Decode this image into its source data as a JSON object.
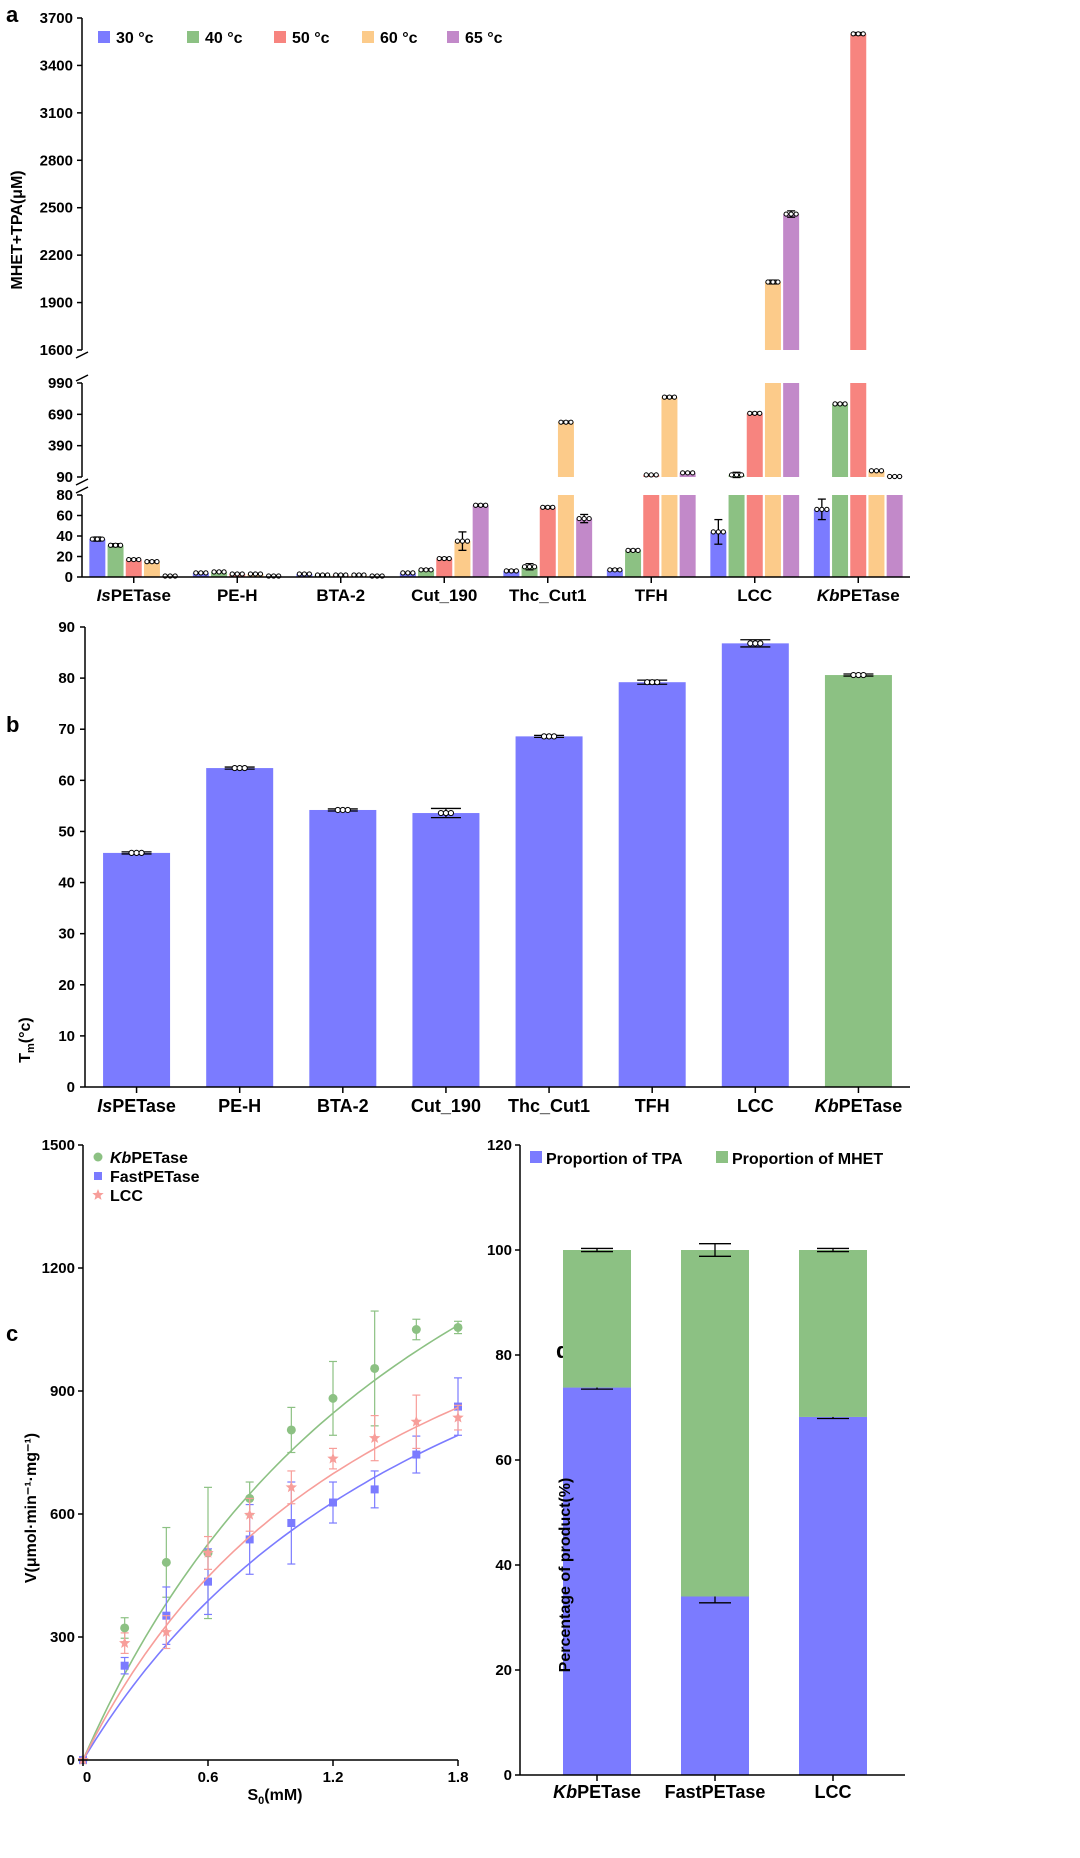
{
  "colors": {
    "c30": "#7b7bff",
    "c40": "#8cc183",
    "c50": "#f7847f",
    "c60": "#fccb8a",
    "c65": "#c289c9"
  },
  "chart_data": [
    {
      "id": "a",
      "panel_label": "a",
      "type": "bar",
      "ylabel": "MHET+TPA(μM)",
      "categories": [
        {
          "pre": "Is",
          "post": "PETase"
        },
        {
          "pre": "",
          "post": "PE-H"
        },
        {
          "pre": "",
          "post": "BTA-2"
        },
        {
          "pre": "",
          "post": "Cut_190"
        },
        {
          "pre": "",
          "post": "Thc_Cut1"
        },
        {
          "pre": "",
          "post": "TFH"
        },
        {
          "pre": "",
          "post": "LCC"
        },
        {
          "pre": "Kb",
          "post": "PETase"
        }
      ],
      "series": [
        {
          "name": "30 °c",
          "color": "#7b7bff",
          "values": [
            37,
            4,
            3,
            4,
            6,
            7,
            44,
            66
          ],
          "errors": [
            2,
            0.5,
            0.5,
            0.5,
            1,
            1,
            12,
            10
          ]
        },
        {
          "name": "40 °c",
          "color": "#8cc183",
          "values": [
            31,
            5,
            2,
            7,
            10,
            26,
            110,
            790
          ],
          "errors": [
            1.5,
            0.5,
            0.5,
            1,
            3,
            1,
            25,
            8
          ]
        },
        {
          "name": "50 °c",
          "color": "#f7847f",
          "values": [
            17,
            3,
            2,
            18,
            68,
            110,
            700,
            3600
          ],
          "errors": [
            1,
            0.5,
            0.5,
            1,
            1,
            5,
            10,
            8
          ]
        },
        {
          "name": "60 °c",
          "color": "#fccb8a",
          "values": [
            15,
            3,
            2,
            35,
            615,
            855,
            2030,
            150
          ],
          "errors": [
            1,
            0.5,
            0.5,
            9,
            10,
            10,
            12,
            5
          ]
        },
        {
          "name": "65 °c",
          "color": "#c289c9",
          "values": [
            1,
            1,
            1,
            70,
            57,
            130,
            2460,
            95
          ],
          "errors": [
            0.5,
            0.5,
            0.5,
            1,
            4,
            5,
            20,
            5
          ]
        }
      ],
      "yticks_segment_bottom": [
        0,
        20,
        40,
        60,
        80
      ],
      "yticks_segment_middle": [
        90,
        390,
        690,
        990
      ],
      "yticks_segment_top": [
        1600,
        1900,
        2200,
        2500,
        2800,
        3100,
        3400,
        3700
      ],
      "axis_segments": [
        [
          0,
          80
        ],
        [
          90,
          990
        ],
        [
          1600,
          3700
        ]
      ],
      "legend_position": "top-left"
    },
    {
      "id": "b",
      "panel_label": "b",
      "type": "bar",
      "ylabel_main": "T",
      "ylabel_sub": "m",
      "ylabel_unit": "(°c)",
      "categories": [
        {
          "pre": "Is",
          "post": "PETase"
        },
        {
          "pre": "",
          "post": "PE-H"
        },
        {
          "pre": "",
          "post": "BTA-2"
        },
        {
          "pre": "",
          "post": "Cut_190"
        },
        {
          "pre": "",
          "post": "Thc_Cut1"
        },
        {
          "pre": "",
          "post": "TFH"
        },
        {
          "pre": "",
          "post": "LCC"
        },
        {
          "pre": "Kb",
          "post": "PETase"
        }
      ],
      "values": [
        45.8,
        62.4,
        54.2,
        53.6,
        68.6,
        79.2,
        86.8,
        80.6
      ],
      "errors": [
        0.2,
        0.2,
        0.2,
        0.9,
        0.2,
        0.4,
        0.7,
        0.2
      ],
      "bar_colors": [
        "#7b7bff",
        "#7b7bff",
        "#7b7bff",
        "#7b7bff",
        "#7b7bff",
        "#7b7bff",
        "#7b7bff",
        "#8cc183"
      ],
      "ylim": [
        0,
        90
      ],
      "yticks": [
        0,
        10,
        20,
        30,
        40,
        50,
        60,
        70,
        80,
        90
      ]
    },
    {
      "id": "c",
      "panel_label": "c",
      "type": "scatter",
      "ylabel": "V(μmol·min⁻¹·mg⁻¹)",
      "xlabel_main": "S",
      "xlabel_sub": "0",
      "xlabel_unit": "(mM)",
      "xlim": [
        0,
        1.8
      ],
      "ylim": [
        0,
        1500
      ],
      "xticks": [
        "0",
        "0.6",
        "1.2",
        "1.8"
      ],
      "xtick_values": [
        0,
        0.6,
        1.2,
        1.8
      ],
      "yticks": [
        0,
        300,
        600,
        900,
        1200,
        1500
      ],
      "legend_position": "top-left",
      "series": [
        {
          "name_pre": "Kb",
          "name_post": "PETase",
          "color": "#8cc183",
          "marker": "circle",
          "x": [
            0,
            0.2,
            0.4,
            0.6,
            0.8,
            1.0,
            1.2,
            1.4,
            1.6,
            1.8
          ],
          "y": [
            0,
            322,
            482,
            505,
            638,
            805,
            882,
            955,
            1050,
            1055
          ],
          "err": [
            0,
            25,
            85,
            160,
            40,
            55,
            90,
            140,
            25,
            15
          ],
          "fit": {
            "vmax": 2150,
            "km": 1.85
          }
        },
        {
          "name_pre": "",
          "name_post": "FastPETase",
          "color": "#7b7bff",
          "marker": "square",
          "x": [
            0,
            0.2,
            0.4,
            0.6,
            0.8,
            1.0,
            1.2,
            1.4,
            1.6,
            1.8
          ],
          "y": [
            0,
            230,
            352,
            435,
            538,
            578,
            628,
            660,
            745,
            862
          ],
          "err": [
            0,
            20,
            70,
            80,
            85,
            100,
            50,
            45,
            45,
            70
          ],
          "fit": {
            "vmax": 1650,
            "km": 1.95
          }
        },
        {
          "name_pre": "",
          "name_post": "LCC",
          "color": "#f79e9a",
          "marker": "star",
          "x": [
            0,
            0.2,
            0.4,
            0.6,
            0.8,
            1.0,
            1.2,
            1.4,
            1.6,
            1.8
          ],
          "y": [
            0,
            285,
            312,
            505,
            598,
            665,
            735,
            785,
            825,
            835
          ],
          "err": [
            0,
            25,
            40,
            40,
            40,
            40,
            25,
            55,
            65,
            30
          ],
          "fit": {
            "vmax": 1600,
            "km": 1.55
          }
        }
      ]
    },
    {
      "id": "d",
      "panel_label": "d",
      "type": "bar",
      "stacked": true,
      "ylabel": "Percentage of product(%)",
      "categories": [
        {
          "pre": "Kb",
          "post": "PETase"
        },
        {
          "pre": "",
          "post": "FastPETase"
        },
        {
          "pre": "",
          "post": "LCC"
        }
      ],
      "series": [
        {
          "name": "Proportion of TPA",
          "color": "#7b7bff",
          "values": [
            73.8,
            34.0,
            68.2
          ],
          "errors": [
            0.3,
            1.2,
            0.3
          ]
        },
        {
          "name": "Proportion of MHET",
          "color": "#8cc183",
          "values": [
            26.2,
            66.0,
            31.8
          ],
          "errors": [
            0.3,
            1.2,
            0.3
          ]
        }
      ],
      "ylim": [
        0,
        120
      ],
      "yticks": [
        0,
        20,
        40,
        60,
        80,
        100,
        120
      ],
      "legend_position": "top"
    }
  ]
}
